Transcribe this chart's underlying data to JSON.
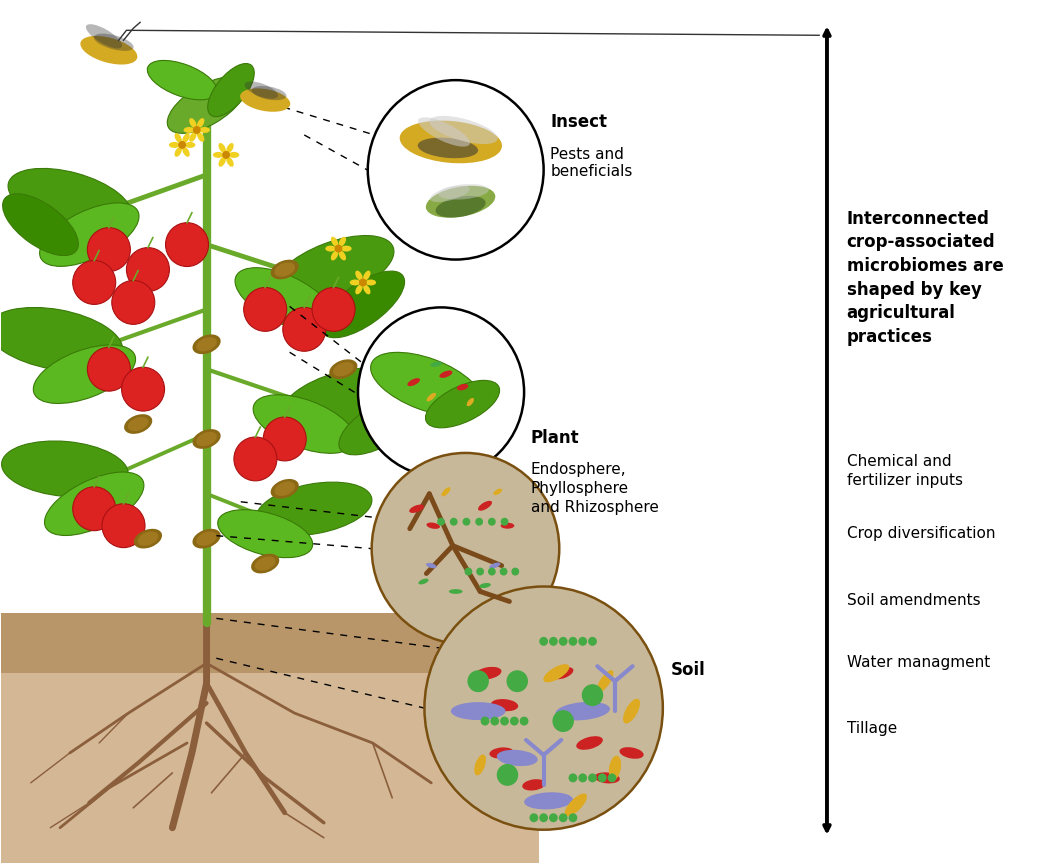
{
  "bg_color": "#ffffff",
  "bold_text": "Interconnected\ncrop-associated\nmicrobiomes are\nshaped by key\nagricultural\npractices",
  "list_items": [
    "Chemical and\nfertilizer inputs",
    "Crop diversification",
    "Soil amendments",
    "Water managment",
    "Tillage"
  ],
  "insect_label_bold": "Insect",
  "insect_label_normal": "Pests and\nbeneficials",
  "plant_label_bold": "Plant",
  "plant_label_normal": "Endosphere,\nPhyllosphere\nand Rhizosphere",
  "soil_label_bold": "Soil",
  "root_color": "#8B5E3C",
  "stem_color": "#6aaa2a",
  "leaf_color": "#4a9a10",
  "leaf_color2": "#5cb820",
  "tomato_color": "#dd2222",
  "microbe_red": "#cc2222",
  "microbe_blue": "#8888cc",
  "microbe_green": "#44aa44",
  "microbe_yellow": "#ddaa22",
  "soil_fill": "#c8b89a",
  "soil_bg_light": "#d4b896",
  "soil_bg_dark": "#b8966a"
}
